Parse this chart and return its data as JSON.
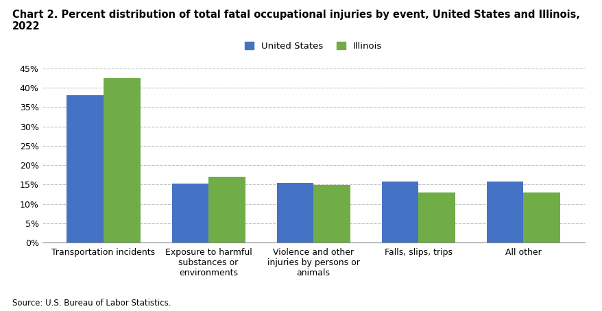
{
  "title": "Chart 2. Percent distribution of total fatal occupational injuries by event, United States and Illinois, 2022",
  "categories": [
    "Transportation incidents",
    "Exposure to harmful\nsubstances or\nenvironments",
    "Violence and other\ninjuries by persons or\nanimals",
    "Falls, slips, trips",
    "All other"
  ],
  "us_values": [
    38.0,
    15.3,
    15.4,
    15.8,
    15.8
  ],
  "il_values": [
    42.5,
    17.0,
    14.9,
    13.0,
    13.0
  ],
  "us_color": "#4472C4",
  "il_color": "#70AD47",
  "us_label": "United States",
  "il_label": "Illinois",
  "ylim": [
    0,
    45
  ],
  "yticks": [
    0,
    5,
    10,
    15,
    20,
    25,
    30,
    35,
    40,
    45
  ],
  "source_text": "Source: U.S. Bureau of Labor Statistics.",
  "background_color": "#ffffff",
  "grid_color": "#aaaaaa",
  "bar_width": 0.35,
  "title_fontsize": 10.5,
  "axis_fontsize": 9,
  "legend_fontsize": 9.5,
  "source_fontsize": 8.5
}
